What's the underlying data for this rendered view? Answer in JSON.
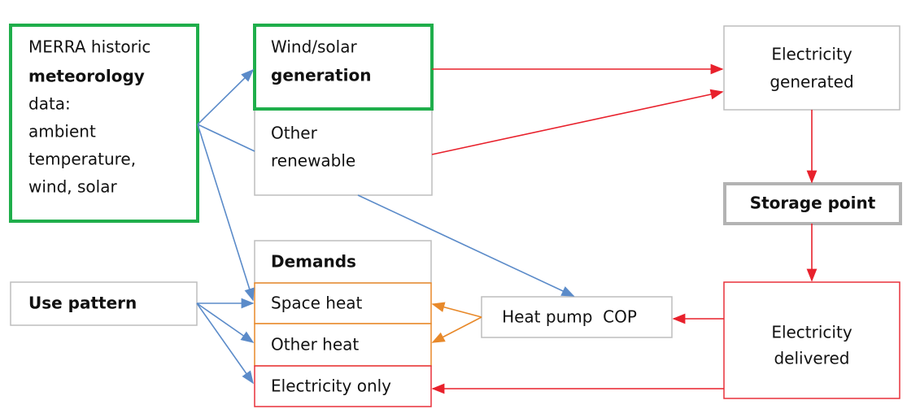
{
  "nodes": [
    {
      "lines": [
        "MERRA historic",
        "meteorology",
        "data:",
        "ambient",
        "temperature,",
        "wind, solar"
      ]
    },
    {
      "lines": [
        "Wind/solar",
        "generation"
      ]
    },
    {
      "lines": [
        "Other",
        "renewable"
      ]
    },
    {
      "lines": [
        "Electricity",
        "generated"
      ]
    },
    {
      "lines": [
        "Storage point"
      ]
    },
    {
      "lines": [
        "Electricity",
        "delivered"
      ]
    },
    {
      "lines": [
        "Heat pump  COP"
      ]
    },
    {
      "lines": [
        "Demands"
      ]
    },
    {
      "lines": [
        "Space heat"
      ]
    },
    {
      "lines": [
        "Other heat"
      ]
    },
    {
      "lines": [
        "Electricity only"
      ]
    },
    {
      "lines": [
        "Use pattern"
      ]
    }
  ]
}
